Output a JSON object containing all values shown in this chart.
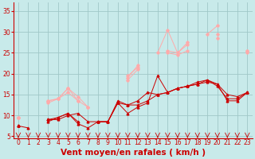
{
  "background_color": "#c8eaea",
  "grid_color": "#a0c8c8",
  "line_color_dark": "#cc0000",
  "line_color_light": "#ffaaaa",
  "xlabel": "Vent moyen/en rafales ( km/h )",
  "ylabel_ticks": [
    5,
    10,
    15,
    20,
    25,
    30,
    35
  ],
  "xtick_labels": [
    "0",
    "1",
    "2",
    "3",
    "4",
    "5",
    "6",
    "7",
    "8",
    "9",
    "10",
    "11",
    "12",
    "13",
    "14",
    "15",
    "16",
    "17",
    "18",
    "19",
    "20",
    "21",
    "22",
    "23"
  ],
  "xlim": [
    -0.5,
    23.5
  ],
  "ylim": [
    4.5,
    37
  ],
  "series_dark": [
    [
      7.5,
      7.0,
      null,
      8.5,
      9.5,
      10.5,
      8.0,
      7.0,
      8.5,
      8.5,
      13.0,
      10.5,
      12.0,
      13.0,
      19.5,
      15.5,
      16.5,
      17.0,
      17.5,
      18.0,
      17.5,
      13.5,
      13.5,
      15.5
    ],
    [
      7.5,
      null,
      null,
      9.0,
      9.0,
      10.0,
      10.5,
      8.5,
      8.5,
      8.5,
      13.0,
      12.5,
      13.5,
      15.5,
      15.0,
      15.5,
      16.5,
      17.0,
      18.0,
      18.5,
      17.0,
      14.0,
      14.0,
      15.5
    ],
    [
      7.5,
      null,
      null,
      9.0,
      9.5,
      10.5,
      8.5,
      null,
      8.5,
      8.5,
      13.5,
      12.5,
      12.5,
      13.5,
      15.0,
      15.5,
      16.5,
      17.0,
      17.5,
      18.5,
      17.5,
      15.0,
      14.5,
      15.5
    ]
  ],
  "series_light": [
    [
      9.5,
      null,
      null,
      13.5,
      14.0,
      16.5,
      14.5,
      12.0,
      null,
      null,
      null,
      19.5,
      21.5,
      null,
      25.0,
      30.5,
      25.0,
      27.5,
      null,
      29.5,
      31.5,
      null,
      null,
      25.5
    ],
    [
      9.5,
      null,
      null,
      13.5,
      14.0,
      16.5,
      13.5,
      12.0,
      null,
      null,
      null,
      19.0,
      22.0,
      null,
      null,
      25.5,
      25.0,
      27.0,
      null,
      null,
      29.5,
      null,
      null,
      25.5
    ],
    [
      9.5,
      null,
      null,
      13.0,
      14.0,
      15.5,
      13.5,
      null,
      null,
      null,
      null,
      18.5,
      21.0,
      null,
      null,
      25.0,
      24.5,
      25.5,
      null,
      null,
      28.5,
      null,
      null,
      25.0
    ]
  ],
  "tick_fontsize": 5.5,
  "xlabel_fontsize": 7.5
}
